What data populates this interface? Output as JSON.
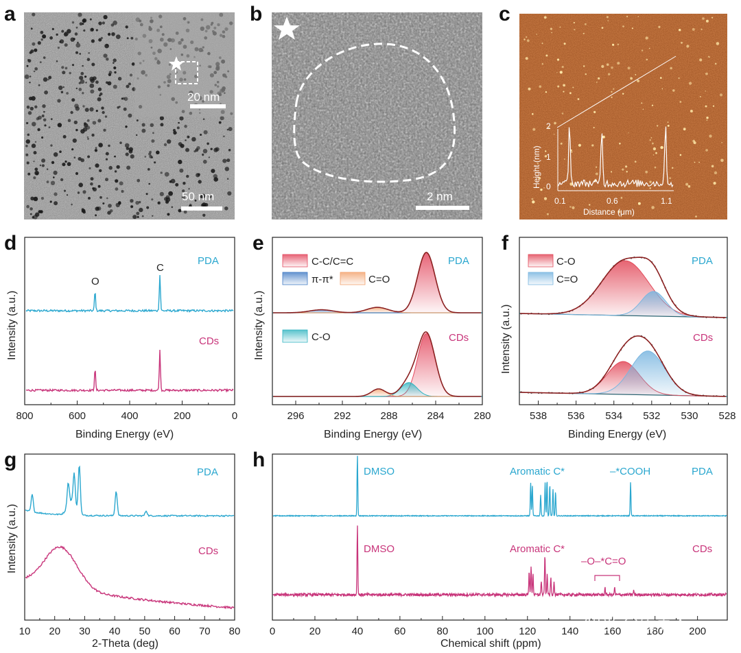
{
  "panels": {
    "a": {
      "letter": "a",
      "inset_scale": "20 nm",
      "scale": "50 nm"
    },
    "b": {
      "letter": "b",
      "scale": "2 nm"
    },
    "c": {
      "letter": "c",
      "inset_ylabel": "Height (nm)",
      "inset_xlabel": "Distance (μm)",
      "inset_yticks": [
        "0",
        "1",
        "2"
      ],
      "inset_xticks": [
        "0.1",
        "0.6",
        "1.1"
      ]
    },
    "d": {
      "letter": "d"
    },
    "e": {
      "letter": "e"
    },
    "f": {
      "letter": "f"
    },
    "g": {
      "letter": "g"
    },
    "h": {
      "letter": "h"
    }
  },
  "watermark": "知乎 @碳点人",
  "colors": {
    "pda": "#2aa7cf",
    "cds": "#c8347a",
    "fit": "#8b2020",
    "bg_line": "#1f5f6b",
    "cc": "#e3485e",
    "pipi": "#3f79c4",
    "co_e": "#f2a06a",
    "co_cds": "#2fb3c0",
    "co_f": "#e24a5a",
    "c_eq_o_f": "#7ab6e0"
  },
  "chart_data": [
    {
      "id": "d",
      "type": "line",
      "xlabel": "Binding Energy (eV)",
      "ylabel": "Intensity (a.u.)",
      "xlim": [
        800,
        0
      ],
      "xticks": [
        800,
        600,
        400,
        200,
        0
      ],
      "reversed_x": true,
      "series": [
        {
          "name": "PDA",
          "color": "#2aa7cf",
          "peaks": [
            {
              "x": 532,
              "h": 0.55
            },
            {
              "x": 285,
              "h": 1.0
            }
          ]
        },
        {
          "name": "CDs",
          "color": "#c8347a",
          "peaks": [
            {
              "x": 532,
              "h": 0.55
            },
            {
              "x": 285,
              "h": 1.0
            }
          ]
        }
      ],
      "annotations": [
        "O",
        "C"
      ]
    },
    {
      "id": "e",
      "type": "line",
      "xlabel": "Binding Energy (eV)",
      "ylabel": "Intensity (a.u.)",
      "xlim": [
        298,
        280
      ],
      "xticks": [
        296,
        292,
        288,
        284,
        280
      ],
      "reversed_x": true,
      "series": [
        {
          "name": "PDA",
          "components": [
            {
              "name": "C-C/C=C",
              "center": 284.8,
              "height": 1.0,
              "width": 0.75
            },
            {
              "name": "π-π*",
              "center": 293.8,
              "height": 0.05,
              "width": 1.0
            },
            {
              "name": "C=O",
              "center": 289.0,
              "height": 0.09,
              "width": 0.9
            }
          ]
        },
        {
          "name": "CDs",
          "components": [
            {
              "name": "C-C/C=C",
              "center": 284.8,
              "height": 1.0,
              "width": 0.75
            },
            {
              "name": "C-O",
              "center": 286.3,
              "height": 0.22,
              "width": 0.7
            },
            {
              "name": "C=O",
              "center": 288.9,
              "height": 0.12,
              "width": 0.6
            }
          ]
        }
      ],
      "legend": [
        "C-C/C=C",
        "π-π*",
        "C=O",
        "C-O"
      ]
    },
    {
      "id": "f",
      "type": "line",
      "xlabel": "Binding Energy (eV)",
      "ylabel": "Intensity (a.u.)",
      "xlim": [
        539,
        528
      ],
      "xticks": [
        538,
        536,
        534,
        532,
        530,
        528
      ],
      "reversed_x": true,
      "series": [
        {
          "name": "PDA",
          "components": [
            {
              "name": "C-O",
              "center": 533.4,
              "height": 1.0,
              "width": 1.25
            },
            {
              "name": "C=O",
              "center": 531.9,
              "height": 0.45,
              "width": 0.65
            }
          ]
        },
        {
          "name": "CDs",
          "components": [
            {
              "name": "C-O",
              "center": 533.5,
              "height": 0.6,
              "width": 0.85
            },
            {
              "name": "C=O",
              "center": 532.2,
              "height": 0.8,
              "width": 0.9
            }
          ]
        }
      ],
      "legend": [
        "C-O",
        "C=O"
      ]
    },
    {
      "id": "g",
      "type": "line",
      "xlabel": "2-Theta (deg)",
      "ylabel": "Intensity (a.u.)",
      "xlim": [
        10,
        80
      ],
      "xticks": [
        10,
        20,
        30,
        40,
        50,
        60,
        70,
        80
      ],
      "series": [
        {
          "name": "PDA",
          "peaks": [
            {
              "x": 12.5,
              "h": 0.35
            },
            {
              "x": 24.5,
              "h": 0.45
            },
            {
              "x": 26.5,
              "h": 0.65
            },
            {
              "x": 28.2,
              "h": 1.0
            },
            {
              "x": 40.5,
              "h": 0.5
            },
            {
              "x": 50.5,
              "h": 0.1
            }
          ]
        },
        {
          "name": "CDs",
          "broad": {
            "center": 22,
            "h": 1.0
          }
        }
      ]
    },
    {
      "id": "h",
      "type": "line",
      "xlabel": "Chemical shift (ppm)",
      "xlim": [
        0,
        214
      ],
      "xticks": [
        0,
        20,
        40,
        60,
        80,
        100,
        120,
        140,
        160,
        180,
        200
      ],
      "series": [
        {
          "name": "PDA",
          "peaks": [
            {
              "x": 40.0,
              "h": 1.0
            },
            {
              "x": 121.5,
              "h": 0.55
            },
            {
              "x": 122.3,
              "h": 0.5
            },
            {
              "x": 126.2,
              "h": 0.35
            },
            {
              "x": 128.3,
              "h": 0.55
            },
            {
              "x": 129.2,
              "h": 0.6
            },
            {
              "x": 130.5,
              "h": 0.52
            },
            {
              "x": 132.0,
              "h": 0.45
            },
            {
              "x": 133.2,
              "h": 0.4
            },
            {
              "x": 168.5,
              "h": 0.55
            }
          ]
        },
        {
          "name": "CDs",
          "peaks": [
            {
              "x": 40.0,
              "h": 1.0
            },
            {
              "x": 120.8,
              "h": 0.35
            },
            {
              "x": 121.7,
              "h": 0.4
            },
            {
              "x": 122.6,
              "h": 0.3
            },
            {
              "x": 126.5,
              "h": 0.2
            },
            {
              "x": 128.2,
              "h": 0.58
            },
            {
              "x": 129.3,
              "h": 0.3
            },
            {
              "x": 131.0,
              "h": 0.25
            },
            {
              "x": 132.5,
              "h": 0.2
            },
            {
              "x": 156.5,
              "h": 0.1
            },
            {
              "x": 161.0,
              "h": 0.1
            },
            {
              "x": 170.0,
              "h": 0.06
            }
          ]
        }
      ],
      "annotations": [
        "DMSO",
        "Aromatic C*",
        "–*COOH",
        "–O–*C=O"
      ]
    }
  ]
}
